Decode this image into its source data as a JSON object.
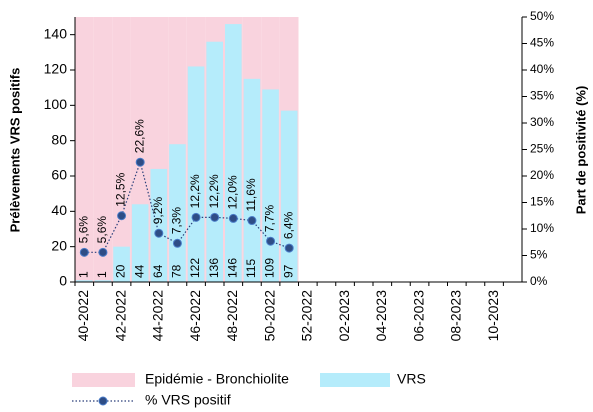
{
  "chart_data": {
    "type": "combo",
    "categories": [
      "40-2022",
      null,
      "42-2022",
      null,
      "44-2022",
      null,
      "46-2022",
      null,
      "48-2022",
      null,
      "50-2022",
      null,
      "52-2022",
      null,
      "02-2023",
      null,
      "04-2023",
      null,
      "06-2023",
      null,
      "08-2023",
      null,
      "10-2023",
      null
    ],
    "series": [
      {
        "name": "Epidémie - Bronchiolite",
        "type": "bar",
        "color": "#f9d3de",
        "values": [
          150,
          150,
          150,
          150,
          150,
          150,
          150,
          150,
          150,
          150,
          150,
          150,
          null,
          null,
          null,
          null,
          null,
          null,
          null,
          null,
          null,
          null,
          null,
          null
        ]
      },
      {
        "name": "VRS",
        "type": "bar",
        "color": "#b5ecfb",
        "values": [
          1,
          1,
          20,
          44,
          64,
          78,
          122,
          136,
          146,
          115,
          109,
          97,
          null,
          null,
          null,
          null,
          null,
          null,
          null,
          null,
          null,
          null,
          null,
          null
        ]
      },
      {
        "name": "% VRS positif",
        "type": "line",
        "axis": "y2",
        "color": "#2a3f7a",
        "marker_color": "#2e4d86",
        "values": [
          5.6,
          5.6,
          12.5,
          22.6,
          9.2,
          7.3,
          12.2,
          12.2,
          12.0,
          11.6,
          7.7,
          6.4,
          null,
          null,
          null,
          null,
          null,
          null,
          null,
          null,
          null,
          null,
          null,
          null
        ],
        "value_labels": [
          "5,6%",
          "5,6%",
          "12,5%",
          "22,6%",
          "9,2%",
          "7,3%",
          "12,2%",
          "12,2%",
          "12,0%",
          "11,6%",
          "7,7%",
          "6,4%",
          null,
          null,
          null,
          null,
          null,
          null,
          null,
          null,
          null,
          null,
          null,
          null
        ]
      }
    ],
    "ylabel": "Prélèvements VRS positifs",
    "y2label": "Part de positivité (%)",
    "ylim": [
      0,
      150
    ],
    "yticks": [
      0,
      20,
      40,
      60,
      80,
      100,
      120,
      140
    ],
    "y2lim": [
      0,
      50
    ],
    "y2ticks": [
      {
        "value": 0,
        "label": "0%"
      },
      {
        "value": 5,
        "label": "5%"
      },
      {
        "value": 10,
        "label": "10%"
      },
      {
        "value": 15,
        "label": "15%"
      },
      {
        "value": 20,
        "label": "20%"
      },
      {
        "value": 25,
        "label": "25%"
      },
      {
        "value": 30,
        "label": "30%"
      },
      {
        "value": 35,
        "label": "35%"
      },
      {
        "value": 40,
        "label": "40%"
      },
      {
        "value": 45,
        "label": "45%"
      },
      {
        "value": 50,
        "label": "50%"
      }
    ],
    "legend": "bottom"
  }
}
